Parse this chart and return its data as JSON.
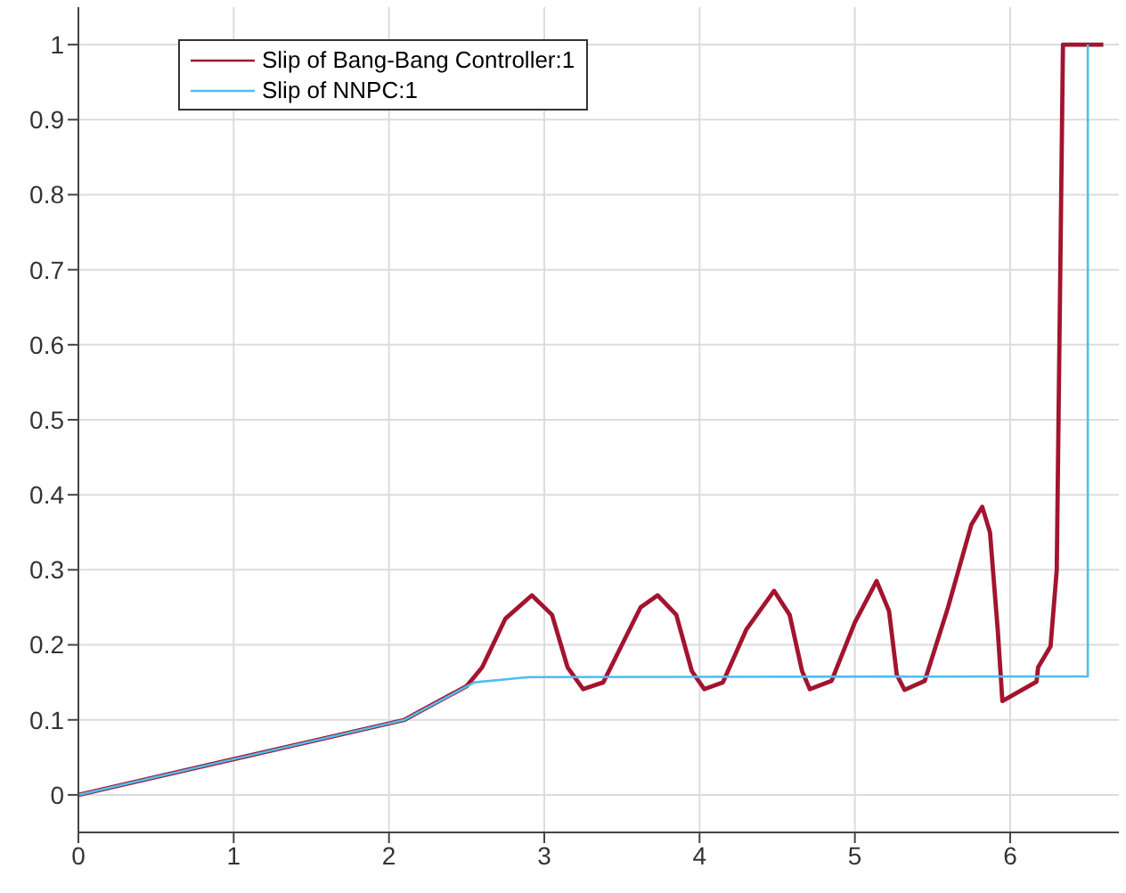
{
  "chart_data": {
    "type": "line",
    "xlim": [
      0,
      6.7
    ],
    "ylim": [
      -0.05,
      1.05
    ],
    "xticks": [
      0,
      1,
      2,
      3,
      4,
      5,
      6
    ],
    "yticks": [
      0,
      0.1,
      0.2,
      0.3,
      0.4,
      0.5,
      0.6,
      0.7,
      0.8,
      0.9,
      1
    ],
    "grid": true,
    "legend": "top left",
    "line_style": "solid",
    "marker": "none",
    "series": [
      {
        "name": "Slip of Bang-Bang Controller:1",
        "color": "#a2142f",
        "x": [
          0,
          2.1,
          2.5,
          2.6,
          2.75,
          2.92,
          3.05,
          3.15,
          3.25,
          3.38,
          3.5,
          3.62,
          3.73,
          3.85,
          3.95,
          4.03,
          4.15,
          4.3,
          4.48,
          4.58,
          4.66,
          4.71,
          4.85,
          5.0,
          5.14,
          5.22,
          5.27,
          5.32,
          5.45,
          5.6,
          5.75,
          5.82,
          5.87,
          5.92,
          5.95,
          6.17,
          6.18,
          6.26,
          6.3,
          6.34,
          6.6
        ],
        "values": [
          0,
          0.1,
          0.145,
          0.17,
          0.235,
          0.266,
          0.24,
          0.17,
          0.141,
          0.15,
          0.2,
          0.25,
          0.266,
          0.24,
          0.165,
          0.141,
          0.15,
          0.22,
          0.272,
          0.24,
          0.165,
          0.141,
          0.152,
          0.23,
          0.285,
          0.245,
          0.16,
          0.14,
          0.152,
          0.25,
          0.36,
          0.384,
          0.35,
          0.22,
          0.125,
          0.151,
          0.17,
          0.198,
          0.3,
          1,
          1
        ]
      },
      {
        "name": "Slip of NNPC:1",
        "color": "#4dbeee",
        "x": [
          0,
          2.1,
          2.55,
          2.9,
          6.5,
          6.5
        ],
        "values": [
          0,
          0.1,
          0.15,
          0.157,
          0.158,
          1
        ]
      }
    ]
  }
}
